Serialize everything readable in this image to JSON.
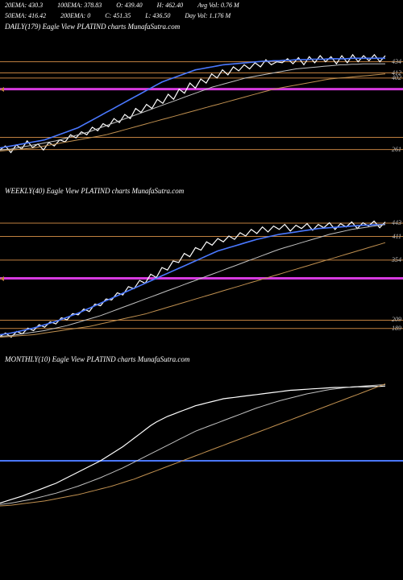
{
  "header": {
    "row1": [
      {
        "k": "20EMA",
        "v": "430.3"
      },
      {
        "k": "100EMA",
        "v": "378.83"
      },
      {
        "k": "O",
        "v": "439.40"
      },
      {
        "k": "H",
        "v": "462.40"
      },
      {
        "k": "Avg Vol",
        "v": "0.76   M"
      }
    ],
    "row2": [
      {
        "k": "50EMA",
        "v": "416.42"
      },
      {
        "k": "200EMA",
        "v": "0"
      },
      {
        "k": "C",
        "v": "451.35"
      },
      {
        "k": "L",
        "v": "436.50"
      },
      {
        "k": "Day Vol",
        "v": "1.176   M"
      }
    ]
  },
  "charts": [
    {
      "title": "DAILY(179) Eagle   View  PLATIND charts MunafaSutra.com",
      "height": 190,
      "background": "#000000",
      "ymin": 200,
      "ymax": 470,
      "levels": [
        {
          "v": 434,
          "color": "#c08040",
          "label": "434"
        },
        {
          "v": 412,
          "color": "#c08040",
          "label": "412"
        },
        {
          "v": 402,
          "color": "#c08040",
          "label": "402"
        },
        {
          "v": 380,
          "color": "#d63adf",
          "label": "",
          "thick": 3
        },
        {
          "v": 285,
          "color": "#c08040",
          "label": ""
        },
        {
          "v": 261,
          "color": "#c08040",
          "label": "261"
        }
      ],
      "triangle": {
        "y": 380,
        "color": "#c08040"
      },
      "series": [
        {
          "name": "price",
          "color": "#ffffff",
          "w": 1.2,
          "pts": [
            260,
            268,
            255,
            270,
            262,
            278,
            265,
            272,
            260,
            275,
            268,
            280,
            276,
            290,
            284,
            296,
            290,
            305,
            298,
            312,
            306,
            322,
            314,
            330,
            322,
            342,
            334,
            350,
            342,
            360,
            352,
            370,
            360,
            380,
            372,
            392,
            382,
            400,
            392,
            410,
            402,
            418,
            408,
            424,
            416,
            428,
            420,
            432,
            424,
            438,
            428,
            434,
            432,
            440,
            430,
            442,
            428,
            444,
            432,
            446,
            434,
            444,
            430,
            446,
            432,
            448,
            434,
            446,
            436,
            448,
            434,
            446
          ]
        },
        {
          "name": "ema20",
          "color": "#4a78ff",
          "w": 1.6,
          "pts": [
            264,
            266,
            268,
            270,
            272,
            274,
            276,
            278,
            280,
            284,
            288,
            292,
            296,
            300,
            304,
            310,
            316,
            322,
            328,
            334,
            340,
            346,
            352,
            358,
            364,
            370,
            376,
            382,
            388,
            394,
            398,
            402,
            406,
            410,
            414,
            418,
            420,
            422,
            424,
            426,
            428,
            429,
            430,
            431,
            432,
            433,
            434,
            435,
            435,
            436,
            436,
            437,
            437,
            438,
            438,
            438,
            439,
            439,
            439,
            440,
            440,
            440,
            440,
            441,
            441,
            441,
            441,
            441,
            441,
            441
          ]
        },
        {
          "name": "ema50",
          "color": "#c0c0c0",
          "w": 1,
          "pts": [
            260,
            261,
            262,
            264,
            266,
            268,
            270,
            272,
            274,
            276,
            278,
            281,
            284,
            287,
            290,
            293,
            296,
            300,
            304,
            308,
            312,
            316,
            320,
            324,
            328,
            332,
            336,
            340,
            344,
            348,
            352,
            356,
            360,
            364,
            368,
            372,
            376,
            380,
            384,
            387,
            390,
            393,
            396,
            399,
            402,
            404,
            406,
            408,
            410,
            412,
            414,
            416,
            418,
            420,
            421,
            422,
            423,
            424,
            425,
            426,
            427,
            428,
            428,
            429,
            429,
            430,
            430,
            430,
            430,
            430
          ]
        },
        {
          "name": "ema100",
          "color": "#c09050",
          "w": 1,
          "pts": [
            258,
            259,
            260,
            261,
            262,
            263,
            264,
            266,
            268,
            270,
            272,
            274,
            276,
            278,
            280,
            282,
            284,
            286,
            288,
            290,
            293,
            296,
            299,
            302,
            305,
            308,
            311,
            314,
            317,
            320,
            323,
            326,
            329,
            332,
            335,
            338,
            341,
            344,
            347,
            350,
            353,
            356,
            359,
            362,
            365,
            368,
            371,
            374,
            377,
            380,
            382,
            384,
            386,
            388,
            390,
            392,
            394,
            396,
            398,
            400,
            401,
            402,
            403,
            404,
            405,
            406,
            407,
            408,
            409,
            410
          ]
        }
      ]
    },
    {
      "title": "WEEKLY(40) Eagle   View  PLATIND charts MunafaSutra.com",
      "height": 195,
      "background": "#000000",
      "ymin": 140,
      "ymax": 480,
      "levels": [
        {
          "v": 443,
          "color": "#c08040",
          "label": "443"
        },
        {
          "v": 411,
          "color": "#c08040",
          "label": "411"
        },
        {
          "v": 354,
          "color": "#c08040",
          "label": "354"
        },
        {
          "v": 310,
          "color": "#d63adf",
          "label": "",
          "thick": 3
        },
        {
          "v": 209,
          "color": "#c08040",
          "label": "209"
        },
        {
          "v": 189,
          "color": "#c08040",
          "label": "189"
        }
      ],
      "triangle": {
        "y": 310,
        "color": "#c08040"
      },
      "series": [
        {
          "name": "price",
          "color": "#ffffff",
          "w": 1.2,
          "pts": [
            170,
            178,
            168,
            182,
            176,
            190,
            184,
            198,
            192,
            205,
            200,
            215,
            210,
            225,
            222,
            236,
            230,
            248,
            244,
            260,
            258,
            275,
            270,
            290,
            285,
            305,
            298,
            320,
            312,
            336,
            330,
            352,
            348,
            370,
            362,
            384,
            378,
            398,
            390,
            406,
            398,
            412,
            404,
            420,
            412,
            428,
            418,
            434,
            422,
            436,
            428,
            440,
            424,
            438,
            430,
            442,
            426,
            440,
            432,
            444,
            428,
            442,
            434,
            446,
            430,
            444,
            436,
            448,
            432,
            446
          ]
        },
        {
          "name": "ema20",
          "color": "#4a78ff",
          "w": 1.6,
          "pts": [
            174,
            176,
            178,
            181,
            184,
            187,
            190,
            194,
            198,
            202,
            206,
            211,
            216,
            221,
            226,
            232,
            238,
            244,
            250,
            256,
            262,
            268,
            274,
            280,
            286,
            292,
            298,
            304,
            310,
            316,
            322,
            328,
            334,
            340,
            346,
            352,
            358,
            364,
            370,
            376,
            380,
            384,
            388,
            392,
            396,
            400,
            404,
            407,
            410,
            413,
            416,
            418,
            420,
            422,
            424,
            426,
            428,
            430,
            431,
            432,
            433,
            434,
            435,
            436,
            437,
            438,
            438,
            439,
            439,
            440
          ]
        },
        {
          "name": "ema50",
          "color": "#c0c0c0",
          "w": 1,
          "pts": [
            170,
            171,
            172,
            174,
            176,
            178,
            180,
            182,
            184,
            187,
            190,
            193,
            196,
            200,
            204,
            208,
            212,
            216,
            220,
            225,
            230,
            235,
            240,
            245,
            250,
            255,
            260,
            265,
            270,
            275,
            280,
            285,
            290,
            295,
            300,
            305,
            310,
            315,
            320,
            325,
            330,
            335,
            340,
            345,
            350,
            355,
            360,
            365,
            370,
            375,
            380,
            384,
            388,
            392,
            396,
            400,
            404,
            408,
            412,
            416,
            419,
            422,
            425,
            428,
            430,
            432,
            434,
            436,
            438,
            440
          ]
        },
        {
          "name": "ema100",
          "color": "#c09050",
          "w": 1,
          "pts": [
            168,
            169,
            170,
            171,
            172,
            173,
            174,
            176,
            178,
            180,
            182,
            184,
            186,
            188,
            190,
            192,
            194,
            197,
            200,
            203,
            206,
            209,
            212,
            215,
            218,
            221,
            224,
            228,
            232,
            236,
            240,
            244,
            248,
            252,
            256,
            260,
            264,
            268,
            272,
            276,
            280,
            284,
            288,
            292,
            296,
            300,
            304,
            308,
            312,
            316,
            320,
            324,
            328,
            332,
            336,
            340,
            344,
            348,
            352,
            356,
            360,
            364,
            368,
            372,
            376,
            380,
            384,
            388,
            392,
            396
          ]
        }
      ]
    },
    {
      "title": "MONTHLY(10) Eagle   View  PLATIND charts MunafaSutra.com",
      "height": 195,
      "background": "#000000",
      "ymin": 100,
      "ymax": 500,
      "levels": [
        {
          "v": 260,
          "color": "#4a78ff",
          "label": "",
          "thick": 2
        }
      ],
      "series": [
        {
          "name": "price",
          "color": "#ffffff",
          "w": 1.2,
          "pts": [
            140,
            145,
            150,
            155,
            160,
            166,
            172,
            178,
            184,
            190,
            196,
            204,
            212,
            220,
            228,
            236,
            244,
            252,
            260,
            270,
            280,
            290,
            300,
            312,
            324,
            336,
            348,
            360,
            370,
            378,
            386,
            392,
            398,
            404,
            410,
            416,
            420,
            424,
            428,
            432,
            436,
            438,
            440,
            442,
            444,
            446,
            448,
            450,
            452,
            454,
            456,
            458,
            460,
            461,
            462,
            463,
            464,
            465,
            466,
            467,
            468,
            468,
            469,
            469,
            470,
            470,
            470,
            471,
            471,
            472
          ]
        },
        {
          "name": "ema-a",
          "color": "#c0c0c0",
          "w": 1,
          "pts": [
            136,
            138,
            140,
            143,
            146,
            149,
            152,
            156,
            160,
            164,
            168,
            173,
            178,
            183,
            188,
            194,
            200,
            206,
            212,
            219,
            226,
            233,
            240,
            248,
            256,
            264,
            272,
            280,
            288,
            296,
            304,
            312,
            320,
            328,
            336,
            344,
            350,
            356,
            362,
            368,
            374,
            380,
            386,
            392,
            398,
            404,
            410,
            415,
            420,
            425,
            430,
            434,
            438,
            442,
            446,
            450,
            453,
            456,
            459,
            462,
            464,
            466,
            468,
            470,
            471,
            472,
            473,
            474,
            475,
            476
          ]
        },
        {
          "name": "ema-b",
          "color": "#c09050",
          "w": 1,
          "pts": [
            132,
            133,
            134,
            136,
            138,
            140,
            142,
            144,
            146,
            149,
            152,
            155,
            158,
            161,
            164,
            168,
            172,
            176,
            180,
            184,
            188,
            193,
            198,
            203,
            208,
            214,
            220,
            226,
            232,
            238,
            244,
            250,
            256,
            262,
            268,
            274,
            280,
            286,
            292,
            298,
            304,
            310,
            316,
            322,
            328,
            334,
            340,
            346,
            352,
            358,
            364,
            370,
            376,
            382,
            388,
            394,
            400,
            406,
            412,
            418,
            424,
            430,
            436,
            442,
            448,
            454,
            460,
            466,
            472,
            478
          ]
        }
      ]
    }
  ],
  "colors": {
    "bg": "#000000",
    "text": "#ffffff",
    "axis_label": "#bfbfbf"
  }
}
